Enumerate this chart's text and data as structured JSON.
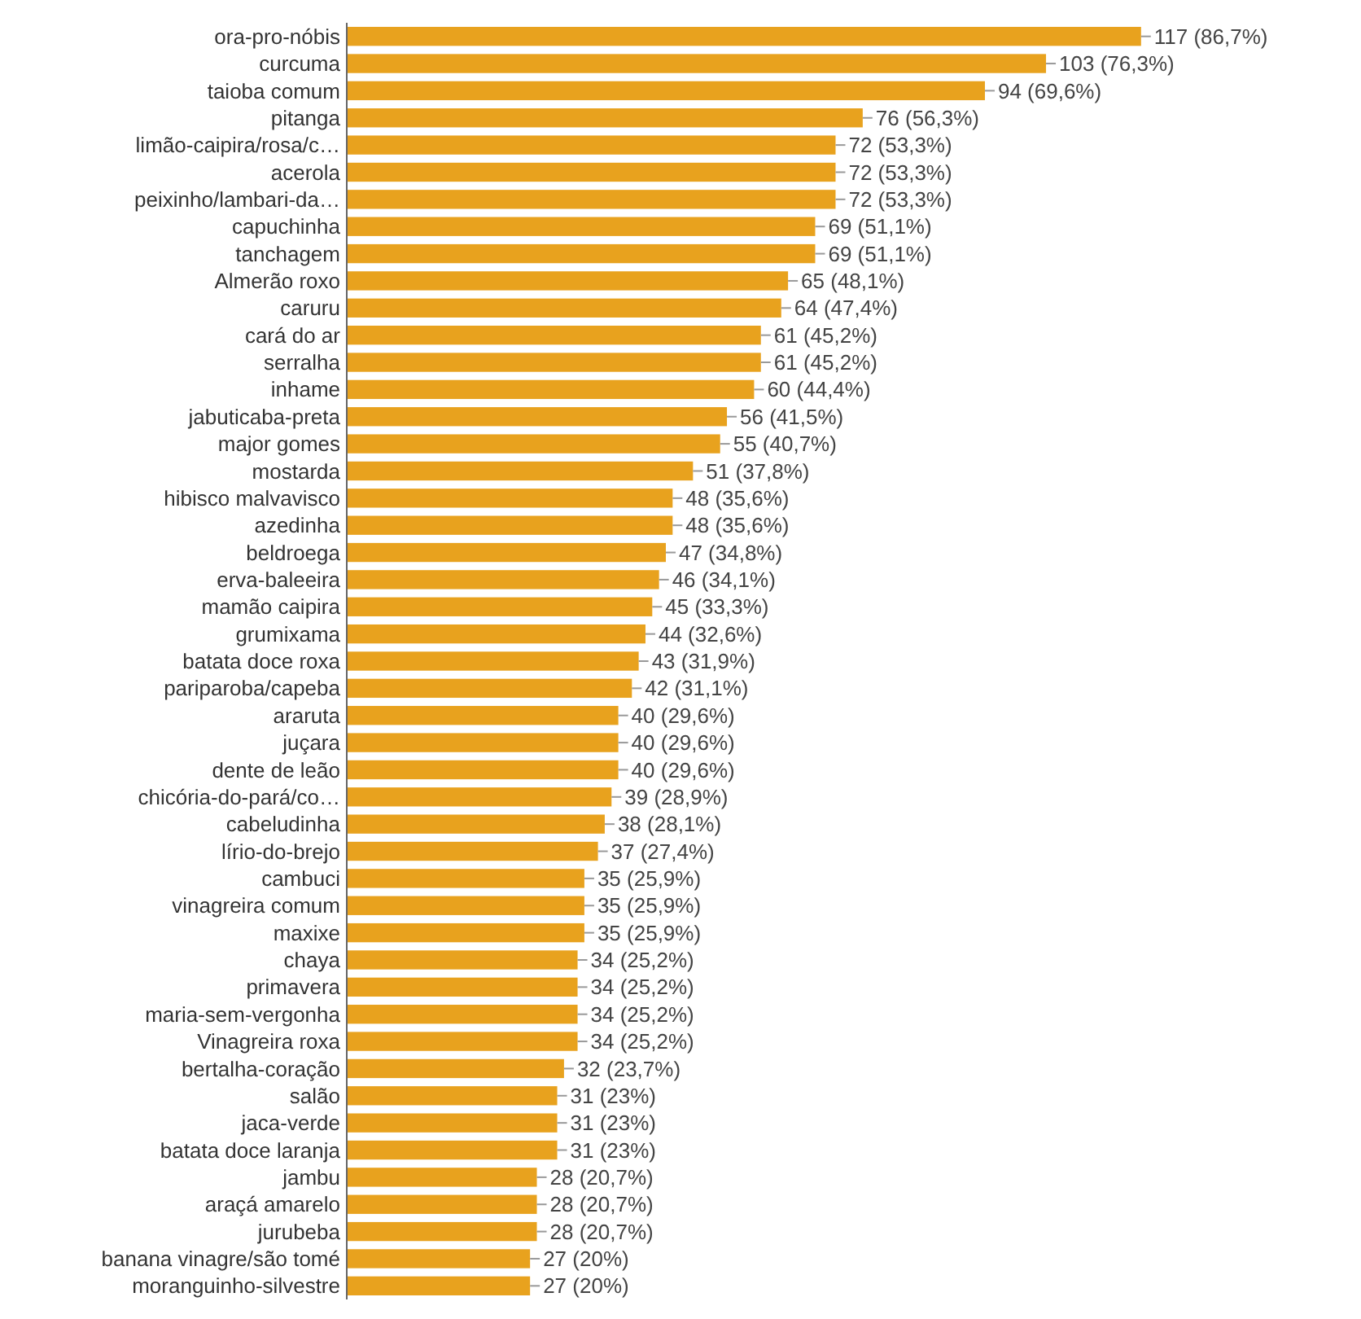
{
  "chart_data": {
    "type": "bar",
    "orientation": "horizontal",
    "color": "#e8a21e",
    "categories": [
      "ora-pro-nóbis",
      "curcuma",
      "taioba comum",
      "pitanga",
      "limão-caipira/rosa/c…",
      "acerola",
      "peixinho/lambari-da…",
      "capuchinha",
      "tanchagem",
      "Almerão roxo",
      "caruru",
      "cará do ar",
      "serralha",
      "inhame",
      "jabuticaba-preta",
      "major gomes",
      "mostarda",
      "hibisco malvavisco",
      "azedinha",
      "beldroega",
      "erva-baleeira",
      "mamão caipira",
      "grumixama",
      "batata doce roxa",
      "pariparoba/capeba",
      "araruta",
      "juçara",
      "dente de leão",
      "chicória-do-pará/co…",
      "cabeludinha",
      "lírio-do-brejo",
      "cambuci",
      "vinagreira comum",
      "maxixe",
      "chaya",
      "primavera",
      "maria-sem-vergonha",
      "Vinagreira roxa",
      "bertalha-coração",
      "salão",
      "jaca-verde",
      "batata doce laranja",
      "jambu",
      "araçá amarelo",
      "jurubeba",
      "banana vinagre/são tomé",
      "moranguinho-silvestre"
    ],
    "values": [
      117,
      103,
      94,
      76,
      72,
      72,
      72,
      69,
      69,
      65,
      64,
      61,
      61,
      60,
      56,
      55,
      51,
      48,
      48,
      47,
      46,
      45,
      44,
      43,
      42,
      40,
      40,
      40,
      39,
      38,
      37,
      35,
      35,
      35,
      34,
      34,
      34,
      34,
      32,
      31,
      31,
      31,
      28,
      28,
      28,
      27,
      27
    ],
    "value_labels": [
      "117 (86,7%)",
      "103 (76,3%)",
      "94 (69,6%)",
      "76 (56,3%)",
      "72 (53,3%)",
      "72 (53,3%)",
      "72 (53,3%)",
      "69 (51,1%)",
      "69 (51,1%)",
      "65 (48,1%)",
      "64 (47,4%)",
      "61 (45,2%)",
      "61 (45,2%)",
      "60 (44,4%)",
      "56 (41,5%)",
      "55 (40,7%)",
      "51 (37,8%)",
      "48 (35,6%)",
      "48 (35,6%)",
      "47 (34,8%)",
      "46 (34,1%)",
      "45 (33,3%)",
      "44 (32,6%)",
      "43 (31,9%)",
      "42 (31,1%)",
      "40 (29,6%)",
      "40 (29,6%)",
      "40 (29,6%)",
      "39 (28,9%)",
      "38 (28,1%)",
      "37 (27,4%)",
      "35 (25,9%)",
      "35 (25,9%)",
      "35 (25,9%)",
      "34 (25,2%)",
      "34 (25,2%)",
      "34 (25,2%)",
      "34 (25,2%)",
      "32 (23,7%)",
      "31 (23%)",
      "31 (23%)",
      "31 (23%)",
      "28 (20,7%)",
      "28 (20,7%)",
      "28 (20,7%)",
      "27 (20%)",
      "27 (20%)"
    ]
  }
}
